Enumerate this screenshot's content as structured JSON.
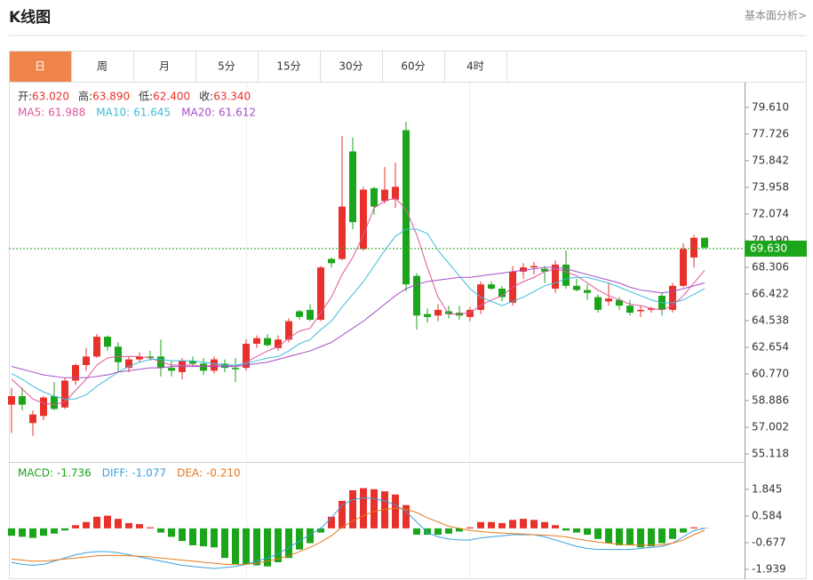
{
  "header": {
    "title": "K线图",
    "link": "基本面分析>"
  },
  "tabs": [
    "日",
    "周",
    "月",
    "5分",
    "15分",
    "30分",
    "60分",
    "4时"
  ],
  "chart_data": [
    {
      "type": "candlestick",
      "info": [
        {
          "label": "开:",
          "value": "63.020"
        },
        {
          "label": "高:",
          "value": "63.890"
        },
        {
          "label": "低:",
          "value": "62.400"
        },
        {
          "label": "收:",
          "value": "63.340"
        }
      ],
      "up_color": "#e8312a",
      "down_color": "#1aa51a",
      "ylim": [
        54.68,
        81.24
      ],
      "yticks": [
        {
          "value": 79.61,
          "label": "79.610"
        },
        {
          "value": 77.726,
          "label": "77.726"
        },
        {
          "value": 75.842,
          "label": "75.842"
        },
        {
          "value": 73.958,
          "label": "73.958"
        },
        {
          "value": 72.074,
          "label": "72.074"
        },
        {
          "value": 70.19,
          "label": "70.190"
        },
        {
          "value": 68.306,
          "label": "68.306"
        },
        {
          "value": 66.422,
          "label": "66.422"
        },
        {
          "value": 64.538,
          "label": "64.538"
        },
        {
          "value": 62.654,
          "label": "62.654"
        },
        {
          "value": 60.77,
          "label": "60.770"
        },
        {
          "value": 58.886,
          "label": "58.886"
        },
        {
          "value": 57.002,
          "label": "57.002"
        },
        {
          "value": 55.118,
          "label": "55.118"
        }
      ],
      "last_price": {
        "value": 69.63,
        "label": "69.630"
      },
      "candles": [
        [
          58.6,
          59.8,
          56.6,
          59.2
        ],
        [
          59.2,
          59.8,
          58.2,
          58.6
        ],
        [
          57.3,
          58.2,
          56.4,
          57.9
        ],
        [
          57.8,
          59.2,
          57.5,
          59.1
        ],
        [
          59.2,
          60.2,
          58.2,
          58.3
        ],
        [
          58.4,
          60.5,
          58.3,
          60.3
        ],
        [
          60.3,
          61.5,
          60.0,
          61.4
        ],
        [
          61.4,
          62.6,
          61.0,
          62.0
        ],
        [
          62.0,
          63.6,
          61.9,
          63.4
        ],
        [
          63.4,
          63.5,
          62.4,
          62.7
        ],
        [
          62.7,
          63.0,
          60.9,
          61.6
        ],
        [
          61.2,
          62.0,
          60.9,
          61.8
        ],
        [
          61.8,
          62.3,
          61.6,
          62.0
        ],
        [
          62.0,
          62.4,
          61.7,
          61.9
        ],
        [
          62.0,
          63.2,
          60.6,
          61.2
        ],
        [
          61.2,
          61.7,
          60.6,
          61.0
        ],
        [
          60.9,
          61.9,
          60.4,
          61.7
        ],
        [
          61.7,
          62.0,
          61.3,
          61.5
        ],
        [
          61.5,
          61.9,
          60.7,
          61.0
        ],
        [
          61.0,
          62.0,
          60.8,
          61.8
        ],
        [
          61.5,
          61.8,
          60.9,
          61.2
        ],
        [
          61.2,
          61.9,
          60.2,
          61.1
        ],
        [
          61.2,
          63.2,
          61.0,
          62.9
        ],
        [
          62.9,
          63.5,
          62.6,
          63.3
        ],
        [
          63.3,
          63.6,
          62.7,
          62.8
        ],
        [
          62.6,
          63.5,
          62.4,
          63.2
        ],
        [
          63.2,
          64.7,
          63.0,
          64.5
        ],
        [
          65.2,
          65.3,
          64.6,
          64.8
        ],
        [
          65.3,
          65.7,
          64.5,
          64.6
        ],
        [
          64.6,
          68.4,
          64.5,
          68.3
        ],
        [
          68.9,
          69.0,
          68.3,
          68.6
        ],
        [
          68.9,
          77.6,
          68.8,
          72.6
        ],
        [
          76.5,
          77.5,
          71.0,
          71.5
        ],
        [
          69.6,
          74.0,
          69.5,
          73.8
        ],
        [
          73.9,
          74.0,
          72.0,
          72.6
        ],
        [
          73.0,
          75.4,
          72.8,
          73.8
        ],
        [
          73.1,
          75.7,
          72.5,
          74.0
        ],
        [
          78.0,
          78.6,
          66.6,
          67.1
        ],
        [
          67.7,
          67.9,
          63.9,
          64.9
        ],
        [
          65.0,
          65.4,
          64.4,
          64.8
        ],
        [
          64.9,
          65.7,
          64.5,
          65.3
        ],
        [
          65.2,
          65.6,
          64.7,
          65.0
        ],
        [
          65.1,
          65.6,
          64.6,
          64.9
        ],
        [
          64.8,
          65.5,
          64.5,
          65.3
        ],
        [
          65.3,
          67.3,
          65.0,
          67.1
        ],
        [
          67.1,
          67.3,
          66.7,
          66.8
        ],
        [
          66.8,
          67.0,
          65.9,
          66.2
        ],
        [
          65.8,
          68.4,
          65.6,
          68.0
        ],
        [
          68.0,
          68.6,
          67.5,
          68.3
        ],
        [
          68.3,
          68.7,
          67.8,
          68.4
        ],
        [
          68.2,
          68.4,
          67.2,
          68.0
        ],
        [
          66.8,
          68.8,
          66.5,
          68.5
        ],
        [
          68.5,
          69.5,
          66.8,
          67.0
        ],
        [
          67.0,
          67.5,
          66.6,
          66.7
        ],
        [
          66.7,
          67.1,
          66.0,
          66.5
        ],
        [
          66.2,
          66.4,
          65.1,
          65.3
        ],
        [
          65.9,
          67.2,
          65.6,
          66.1
        ],
        [
          66.0,
          66.2,
          65.3,
          65.6
        ],
        [
          65.6,
          66.0,
          64.9,
          65.1
        ],
        [
          65.2,
          65.6,
          64.8,
          65.3
        ],
        [
          65.3,
          65.5,
          65.1,
          65.4
        ],
        [
          66.3,
          66.5,
          64.9,
          65.3
        ],
        [
          65.3,
          67.2,
          65.1,
          67.0
        ],
        [
          67.0,
          70.0,
          66.9,
          69.6
        ],
        [
          69.0,
          70.6,
          68.3,
          70.4
        ],
        [
          70.4,
          70.4,
          69.6,
          69.7
        ]
      ],
      "series": [
        {
          "name": "MA5:",
          "value_label": "61.988",
          "color": "#e0569b",
          "values": [
            60.4,
            59.7,
            59.0,
            58.7,
            58.6,
            58.8,
            59.6,
            60.4,
            61.4,
            61.9,
            62.0,
            62.0,
            62.0,
            61.9,
            61.6,
            61.4,
            61.4,
            61.4,
            61.3,
            61.4,
            61.4,
            61.3,
            61.6,
            62.0,
            62.4,
            62.7,
            63.3,
            63.8,
            64.0,
            65.1,
            66.2,
            67.8,
            69.0,
            70.6,
            72.5,
            73.0,
            73.2,
            72.4,
            70.6,
            68.3,
            66.2,
            65.0,
            65.0,
            65.1,
            65.6,
            66.0,
            66.3,
            66.9,
            67.3,
            67.6,
            68.0,
            68.2,
            68.0,
            67.7,
            67.2,
            66.7,
            66.3,
            66.0,
            65.7,
            65.6,
            65.4,
            65.3,
            65.6,
            66.3,
            67.2,
            68.1
          ]
        },
        {
          "name": "MA10:",
          "value_label": "61.645",
          "color": "#3cbcd8",
          "values": [
            60.8,
            60.4,
            59.9,
            59.5,
            59.2,
            59.0,
            59.0,
            59.3,
            59.9,
            60.4,
            60.9,
            61.3,
            61.6,
            61.8,
            61.8,
            61.7,
            61.7,
            61.7,
            61.6,
            61.5,
            61.4,
            61.4,
            61.5,
            61.7,
            61.9,
            62.0,
            62.4,
            62.9,
            63.2,
            63.9,
            64.5,
            65.5,
            66.4,
            67.3,
            68.4,
            69.5,
            70.5,
            71.0,
            71.0,
            70.7,
            69.5,
            68.6,
            67.7,
            66.8,
            66.2,
            65.9,
            65.6,
            65.9,
            66.2,
            66.6,
            67.0,
            67.2,
            67.5,
            67.6,
            67.6,
            67.4,
            67.2,
            66.9,
            66.6,
            66.3,
            66.0,
            65.8,
            65.8,
            66.0,
            66.4,
            66.8
          ]
        },
        {
          "name": "MA20:",
          "value_label": "61.612",
          "color": "#a64ec8",
          "values": [
            61.3,
            61.1,
            60.9,
            60.7,
            60.6,
            60.5,
            60.5,
            60.5,
            60.6,
            60.7,
            60.9,
            61.0,
            61.1,
            61.2,
            61.2,
            61.3,
            61.3,
            61.3,
            61.3,
            61.3,
            61.3,
            61.3,
            61.4,
            61.5,
            61.6,
            61.8,
            62.0,
            62.2,
            62.4,
            62.7,
            63.0,
            63.5,
            64.0,
            64.5,
            65.1,
            65.7,
            66.3,
            66.8,
            67.1,
            67.3,
            67.4,
            67.5,
            67.6,
            67.6,
            67.7,
            67.8,
            67.9,
            68.0,
            68.1,
            68.2,
            68.3,
            68.3,
            68.2,
            68.0,
            67.8,
            67.6,
            67.4,
            67.2,
            66.9,
            66.7,
            66.6,
            66.5,
            66.6,
            66.8,
            67.0,
            67.2
          ]
        }
      ]
    },
    {
      "type": "macd",
      "ylim": [
        -2.4,
        3.06
      ],
      "yticks": [
        {
          "value": 1.845,
          "label": "1.845"
        },
        {
          "value": 0.584,
          "label": "0.584"
        },
        {
          "value": -0.677,
          "label": "-0.677"
        },
        {
          "value": -1.939,
          "label": "-1.939"
        }
      ],
      "up_color": "#e8312a",
      "down_color": "#1aa51a",
      "histogram": {
        "name": "MACD:",
        "value_label": "-1.736",
        "color": "#1aa51a",
        "values": [
          -0.35,
          -0.4,
          -0.45,
          -0.35,
          -0.25,
          -0.1,
          0.15,
          0.3,
          0.55,
          0.6,
          0.45,
          0.25,
          0.2,
          0.05,
          -0.2,
          -0.4,
          -0.6,
          -0.8,
          -0.85,
          -0.9,
          -1.4,
          -1.7,
          -1.7,
          -1.75,
          -1.8,
          -1.6,
          -1.4,
          -1.0,
          -0.7,
          -0.2,
          0.55,
          1.3,
          1.8,
          1.9,
          1.85,
          1.75,
          1.6,
          1.1,
          -0.3,
          -0.3,
          -0.3,
          -0.25,
          -0.15,
          0.05,
          0.3,
          0.3,
          0.25,
          0.4,
          0.45,
          0.4,
          0.3,
          0.15,
          -0.1,
          -0.2,
          -0.3,
          -0.5,
          -0.7,
          -0.8,
          -0.8,
          -0.9,
          -0.85,
          -0.7,
          -0.5,
          -0.2,
          0.05,
          0.02
        ]
      },
      "series": [
        {
          "name": "DIFF:",
          "value_label": "-1.077",
          "color": "#3a9fe0",
          "values": [
            -1.6,
            -1.7,
            -1.75,
            -1.7,
            -1.55,
            -1.4,
            -1.25,
            -1.15,
            -1.1,
            -1.1,
            -1.15,
            -1.25,
            -1.35,
            -1.45,
            -1.55,
            -1.65,
            -1.75,
            -1.8,
            -1.85,
            -1.9,
            -1.85,
            -1.8,
            -1.7,
            -1.55,
            -1.4,
            -1.2,
            -0.9,
            -0.6,
            -0.3,
            0.0,
            0.5,
            1.1,
            1.35,
            1.45,
            1.4,
            1.3,
            1.1,
            0.8,
            0.3,
            -0.2,
            -0.4,
            -0.5,
            -0.55,
            -0.55,
            -0.45,
            -0.4,
            -0.35,
            -0.3,
            -0.3,
            -0.3,
            -0.4,
            -0.55,
            -0.7,
            -0.85,
            -0.95,
            -1.0,
            -1.0,
            -1.0,
            -1.0,
            -0.95,
            -0.9,
            -0.85,
            -0.7,
            -0.4,
            -0.1,
            0.0
          ]
        },
        {
          "name": "DEA:",
          "value_label": "-0.210",
          "color": "#e87a1e",
          "values": [
            -1.45,
            -1.5,
            -1.55,
            -1.55,
            -1.5,
            -1.45,
            -1.4,
            -1.35,
            -1.3,
            -1.28,
            -1.28,
            -1.3,
            -1.32,
            -1.35,
            -1.4,
            -1.45,
            -1.5,
            -1.55,
            -1.6,
            -1.65,
            -1.7,
            -1.7,
            -1.7,
            -1.65,
            -1.55,
            -1.45,
            -1.3,
            -1.1,
            -0.9,
            -0.65,
            -0.35,
            0.05,
            0.35,
            0.6,
            0.8,
            0.9,
            0.95,
            0.9,
            0.75,
            0.5,
            0.3,
            0.1,
            0.0,
            -0.1,
            -0.15,
            -0.2,
            -0.22,
            -0.25,
            -0.27,
            -0.3,
            -0.32,
            -0.35,
            -0.4,
            -0.5,
            -0.58,
            -0.65,
            -0.7,
            -0.75,
            -0.78,
            -0.8,
            -0.8,
            -0.78,
            -0.7,
            -0.55,
            -0.3,
            -0.1
          ]
        }
      ]
    }
  ]
}
